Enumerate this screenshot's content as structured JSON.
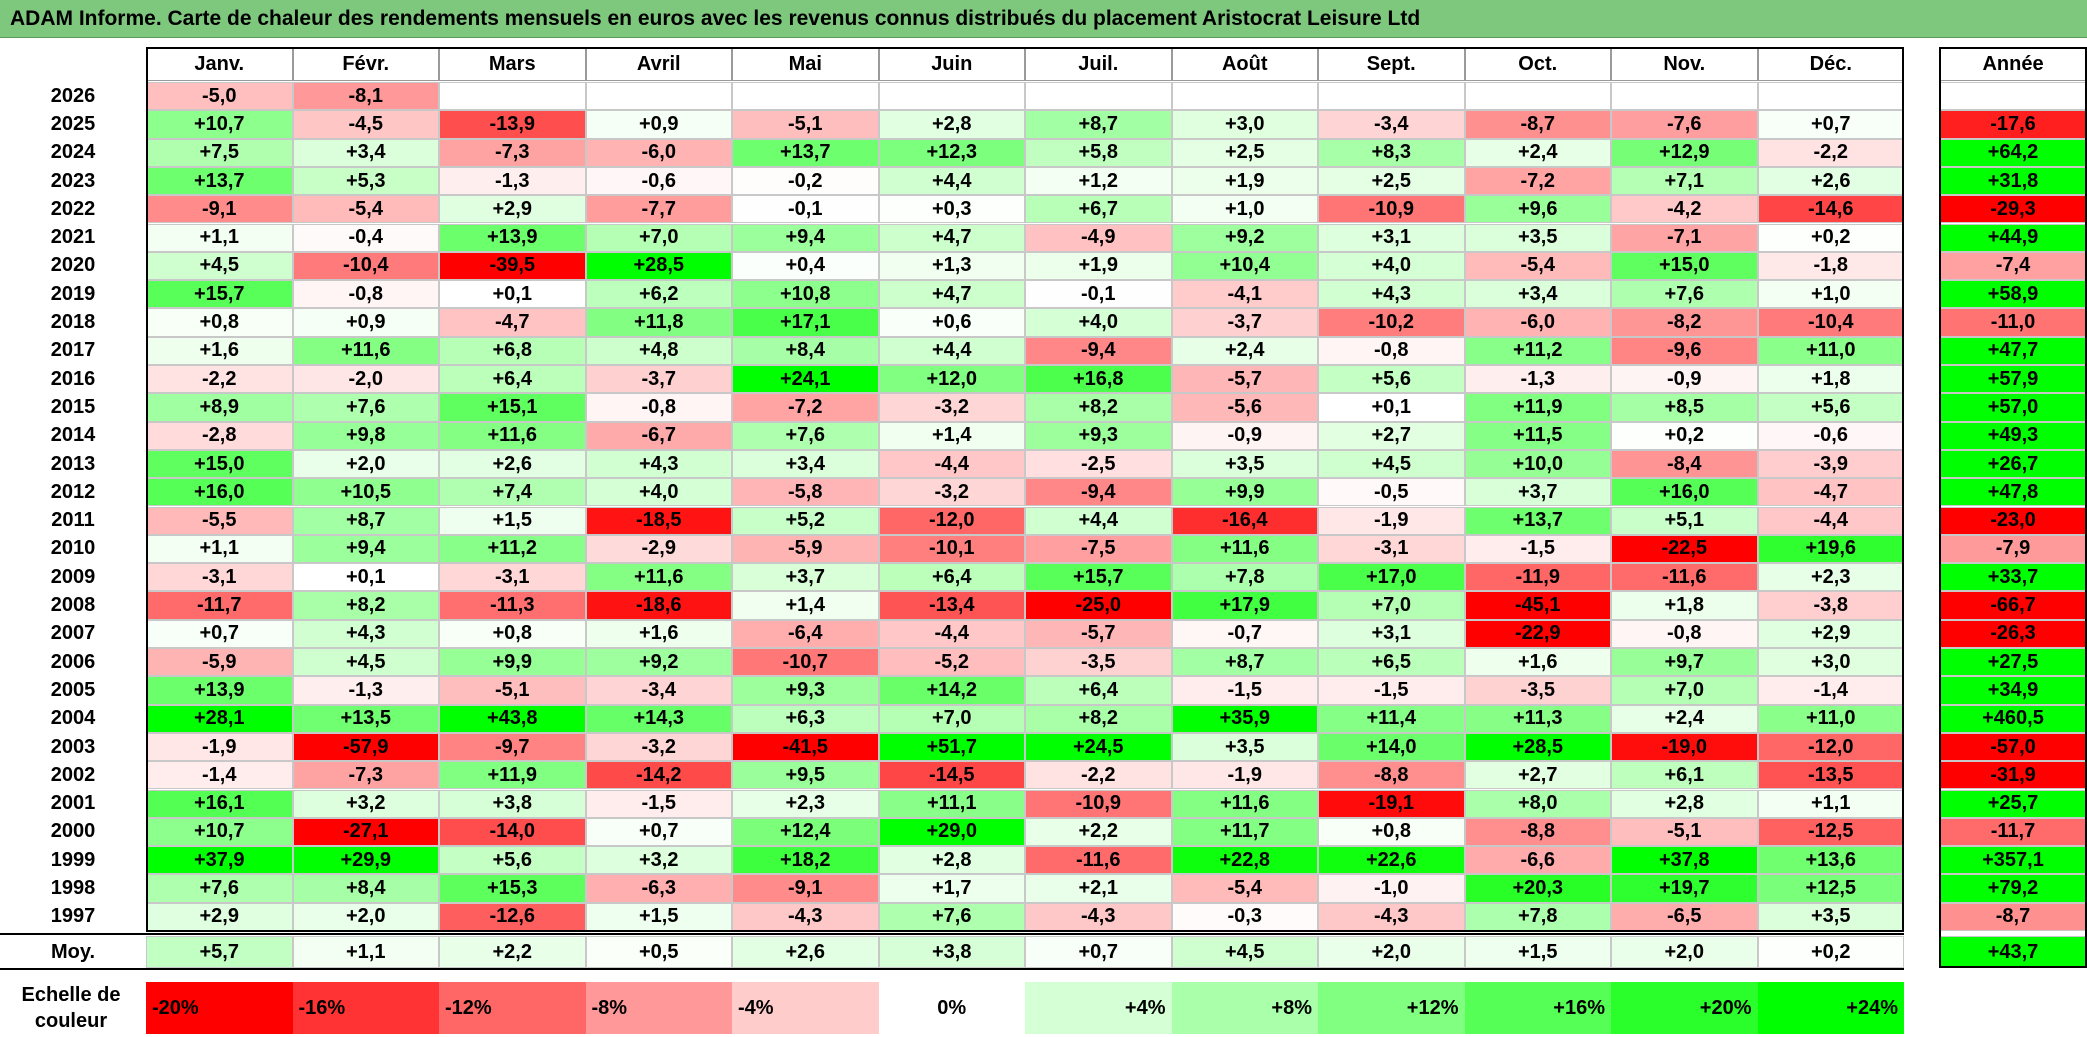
{
  "title": "ADAM Informe. Carte de chaleur des rendements mensuels en euros avec les revenus connus distribués du placement Aristocrat Leisure Ltd",
  "colors": {
    "title_bg": "#7ec87e",
    "negative": "#ff0000",
    "neutral": "#ffffff",
    "positive": "#00ff00"
  },
  "chart_data": {
    "type": "heatmap",
    "columns": [
      "Janv.",
      "Févr.",
      "Mars",
      "Avril",
      "Mai",
      "Juin",
      "Juil.",
      "Août",
      "Sept.",
      "Oct.",
      "Nov.",
      "Déc."
    ],
    "annual_header": "Année",
    "average_label": "Moy.",
    "rows": [
      {
        "year": "2026",
        "months": [
          "-5,0",
          "-8,1",
          "",
          "",
          "",
          "",
          "",
          "",
          "",
          "",
          "",
          ""
        ],
        "annual": ""
      },
      {
        "year": "2025",
        "months": [
          "+10,7",
          "-4,5",
          "-13,9",
          "+0,9",
          "-5,1",
          "+2,8",
          "+8,7",
          "+3,0",
          "-3,4",
          "-8,7",
          "-7,6",
          "+0,7"
        ],
        "annual": "-17,6"
      },
      {
        "year": "2024",
        "months": [
          "+7,5",
          "+3,4",
          "-7,3",
          "-6,0",
          "+13,7",
          "+12,3",
          "+5,8",
          "+2,5",
          "+8,3",
          "+2,4",
          "+12,9",
          "-2,2"
        ],
        "annual": "+64,2"
      },
      {
        "year": "2023",
        "months": [
          "+13,7",
          "+5,3",
          "-1,3",
          "-0,6",
          "-0,2",
          "+4,4",
          "+1,2",
          "+1,9",
          "+2,5",
          "-7,2",
          "+7,1",
          "+2,6"
        ],
        "annual": "+31,8"
      },
      {
        "year": "2022",
        "months": [
          "-9,1",
          "-5,4",
          "+2,9",
          "-7,7",
          "-0,1",
          "+0,3",
          "+6,7",
          "+1,0",
          "-10,9",
          "+9,6",
          "-4,2",
          "-14,6"
        ],
        "annual": "-29,3"
      },
      {
        "year": "2021",
        "months": [
          "+1,1",
          "-0,4",
          "+13,9",
          "+7,0",
          "+9,4",
          "+4,7",
          "-4,9",
          "+9,2",
          "+3,1",
          "+3,5",
          "-7,1",
          "+0,2"
        ],
        "annual": "+44,9"
      },
      {
        "year": "2020",
        "months": [
          "+4,5",
          "-10,4",
          "-39,5",
          "+28,5",
          "+0,4",
          "+1,3",
          "+1,9",
          "+10,4",
          "+4,0",
          "-5,4",
          "+15,0",
          "-1,8"
        ],
        "annual": "-7,4"
      },
      {
        "year": "2019",
        "months": [
          "+15,7",
          "-0,8",
          "+0,1",
          "+6,2",
          "+10,8",
          "+4,7",
          "-0,1",
          "-4,1",
          "+4,3",
          "+3,4",
          "+7,6",
          "+1,0"
        ],
        "annual": "+58,9"
      },
      {
        "year": "2018",
        "months": [
          "+0,8",
          "+0,9",
          "-4,7",
          "+11,8",
          "+17,1",
          "+0,6",
          "+4,0",
          "-3,7",
          "-10,2",
          "-6,0",
          "-8,2",
          "-10,4"
        ],
        "annual": "-11,0"
      },
      {
        "year": "2017",
        "months": [
          "+1,6",
          "+11,6",
          "+6,8",
          "+4,8",
          "+8,4",
          "+4,4",
          "-9,4",
          "+2,4",
          "-0,8",
          "+11,2",
          "-9,6",
          "+11,0"
        ],
        "annual": "+47,7"
      },
      {
        "year": "2016",
        "months": [
          "-2,2",
          "-2,0",
          "+6,4",
          "-3,7",
          "+24,1",
          "+12,0",
          "+16,8",
          "-5,7",
          "+5,6",
          "-1,3",
          "-0,9",
          "+1,8"
        ],
        "annual": "+57,9"
      },
      {
        "year": "2015",
        "months": [
          "+8,9",
          "+7,6",
          "+15,1",
          "-0,8",
          "-7,2",
          "-3,2",
          "+8,2",
          "-5,6",
          "+0,1",
          "+11,9",
          "+8,5",
          "+5,6"
        ],
        "annual": "+57,0"
      },
      {
        "year": "2014",
        "months": [
          "-2,8",
          "+9,8",
          "+11,6",
          "-6,7",
          "+7,6",
          "+1,4",
          "+9,3",
          "-0,9",
          "+2,7",
          "+11,5",
          "+0,2",
          "-0,6"
        ],
        "annual": "+49,3"
      },
      {
        "year": "2013",
        "months": [
          "+15,0",
          "+2,0",
          "+2,6",
          "+4,3",
          "+3,4",
          "-4,4",
          "-2,5",
          "+3,5",
          "+4,5",
          "+10,0",
          "-8,4",
          "-3,9"
        ],
        "annual": "+26,7"
      },
      {
        "year": "2012",
        "months": [
          "+16,0",
          "+10,5",
          "+7,4",
          "+4,0",
          "-5,8",
          "-3,2",
          "-9,4",
          "+9,9",
          "-0,5",
          "+3,7",
          "+16,0",
          "-4,7"
        ],
        "annual": "+47,8"
      },
      {
        "year": "2011",
        "months": [
          "-5,5",
          "+8,7",
          "+1,5",
          "-18,5",
          "+5,2",
          "-12,0",
          "+4,4",
          "-16,4",
          "-1,9",
          "+13,7",
          "+5,1",
          "-4,4"
        ],
        "annual": "-23,0"
      },
      {
        "year": "2010",
        "months": [
          "+1,1",
          "+9,4",
          "+11,2",
          "-2,9",
          "-5,9",
          "-10,1",
          "-7,5",
          "+11,6",
          "-3,1",
          "-1,5",
          "-22,5",
          "+19,6"
        ],
        "annual": "-7,9"
      },
      {
        "year": "2009",
        "months": [
          "-3,1",
          "+0,1",
          "-3,1",
          "+11,6",
          "+3,7",
          "+6,4",
          "+15,7",
          "+7,8",
          "+17,0",
          "-11,9",
          "-11,6",
          "+2,3"
        ],
        "annual": "+33,7"
      },
      {
        "year": "2008",
        "months": [
          "-11,7",
          "+8,2",
          "-11,3",
          "-18,6",
          "+1,4",
          "-13,4",
          "-25,0",
          "+17,9",
          "+7,0",
          "-45,1",
          "+1,8",
          "-3,8"
        ],
        "annual": "-66,7"
      },
      {
        "year": "2007",
        "months": [
          "+0,7",
          "+4,3",
          "+0,8",
          "+1,6",
          "-6,4",
          "-4,4",
          "-5,7",
          "-0,7",
          "+3,1",
          "-22,9",
          "-0,8",
          "+2,9"
        ],
        "annual": "-26,3"
      },
      {
        "year": "2006",
        "months": [
          "-5,9",
          "+4,5",
          "+9,9",
          "+9,2",
          "-10,7",
          "-5,2",
          "-3,5",
          "+8,7",
          "+6,5",
          "+1,6",
          "+9,7",
          "+3,0"
        ],
        "annual": "+27,5"
      },
      {
        "year": "2005",
        "months": [
          "+13,9",
          "-1,3",
          "-5,1",
          "-3,4",
          "+9,3",
          "+14,2",
          "+6,4",
          "-1,5",
          "-1,5",
          "-3,5",
          "+7,0",
          "-1,4"
        ],
        "annual": "+34,9"
      },
      {
        "year": "2004",
        "months": [
          "+28,1",
          "+13,5",
          "+43,8",
          "+14,3",
          "+6,3",
          "+7,0",
          "+8,2",
          "+35,9",
          "+11,4",
          "+11,3",
          "+2,4",
          "+11,0"
        ],
        "annual": "+460,5"
      },
      {
        "year": "2003",
        "months": [
          "-1,9",
          "-57,9",
          "-9,7",
          "-3,2",
          "-41,5",
          "+51,7",
          "+24,5",
          "+3,5",
          "+14,0",
          "+28,5",
          "-19,0",
          "-12,0"
        ],
        "annual": "-57,0"
      },
      {
        "year": "2002",
        "months": [
          "-1,4",
          "-7,3",
          "+11,9",
          "-14,2",
          "+9,5",
          "-14,5",
          "-2,2",
          "-1,9",
          "-8,8",
          "+2,7",
          "+6,1",
          "-13,5"
        ],
        "annual": "-31,9"
      },
      {
        "year": "2001",
        "months": [
          "+16,1",
          "+3,2",
          "+3,8",
          "-1,5",
          "+2,3",
          "+11,1",
          "-10,9",
          "+11,6",
          "-19,1",
          "+8,0",
          "+2,8",
          "+1,1"
        ],
        "annual": "+25,7"
      },
      {
        "year": "2000",
        "months": [
          "+10,7",
          "-27,1",
          "-14,0",
          "+0,7",
          "+12,4",
          "+29,0",
          "+2,2",
          "+11,7",
          "+0,8",
          "-8,8",
          "-5,1",
          "-12,5"
        ],
        "annual": "-11,7"
      },
      {
        "year": "1999",
        "months": [
          "+37,9",
          "+29,9",
          "+5,6",
          "+3,2",
          "+18,2",
          "+2,8",
          "-11,6",
          "+22,8",
          "+22,6",
          "-6,6",
          "+37,8",
          "+13,6"
        ],
        "annual": "+357,1"
      },
      {
        "year": "1998",
        "months": [
          "+7,6",
          "+8,4",
          "+15,3",
          "-6,3",
          "-9,1",
          "+1,7",
          "+2,1",
          "-5,4",
          "-1,0",
          "+20,3",
          "+19,7",
          "+12,5"
        ],
        "annual": "+79,2"
      },
      {
        "year": "1997",
        "months": [
          "+2,9",
          "+2,0",
          "-12,6",
          "+1,5",
          "-4,3",
          "+7,6",
          "-4,3",
          "-0,3",
          "-4,3",
          "+7,8",
          "-6,5",
          "+3,5"
        ],
        "annual": "-8,7"
      }
    ],
    "average": {
      "months": [
        "+5,7",
        "+1,1",
        "+2,2",
        "+0,5",
        "+2,6",
        "+3,8",
        "+0,7",
        "+4,5",
        "+2,0",
        "+1,5",
        "+2,0",
        "+0,2"
      ],
      "annual": "+43,7"
    },
    "scale": {
      "label": "Echelle de couleur",
      "steps": [
        {
          "value": -20,
          "label": "-20%"
        },
        {
          "value": -16,
          "label": "-16%"
        },
        {
          "value": -12,
          "label": "-12%"
        },
        {
          "value": -8,
          "label": "-8%"
        },
        {
          "value": -4,
          "label": "-4%"
        },
        {
          "value": 0,
          "label": "0%"
        },
        {
          "value": 4,
          "label": "+4%"
        },
        {
          "value": 8,
          "label": "+8%"
        },
        {
          "value": 12,
          "label": "+12%"
        },
        {
          "value": 16,
          "label": "+16%"
        },
        {
          "value": 20,
          "label": "+20%"
        },
        {
          "value": 24,
          "label": "+24%"
        }
      ]
    }
  }
}
